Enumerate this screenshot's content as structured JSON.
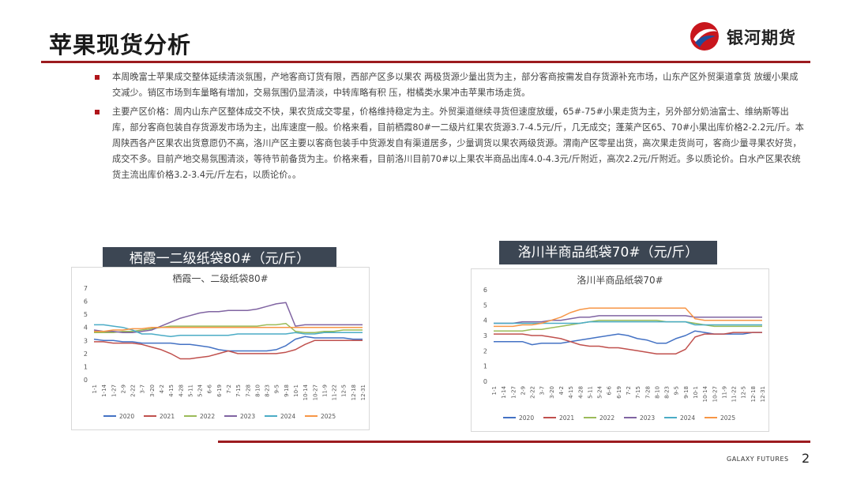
{
  "page": {
    "title": "苹果现货分析",
    "logo_text": "银河期货",
    "footer_brand": "GALAXY FUTURES",
    "page_number": "2",
    "colors": {
      "accent": "#9c1b1f",
      "label_bg": "#3c4653",
      "logo_red": "#c8161d",
      "logo_blue": "#1d4e9e"
    }
  },
  "bullets": [
    "本周晚富士苹果成交整体延续清淡氛围，产地客商订货有限，西部产区多以果农 两极货源少量出货为主，部分客商按需发自存货源补充市场，山东产区外贸渠道拿货 放缓小果成交减少。销区市场到车量略有增加，交易氛围仍显清淡，中转库略有积 压，柑橘类水果冲击苹果市场走货。",
    "主要产区价格：周内山东产区整体成交不快，果农货成交零星，价格维持稳定为主。外贸渠道继续寻货但速度放缓，65#-75#小果走货为主，另外部分奶油富士、维纳斯等出库，部分客商包装自存货源发市场为主，出库速度一般。价格来看，目前栖霞80#一二级片红果农货源3.7-4.5元/斤，几无成交；蓬莱产区65、70#小果出库价格2-2.2元/斤。本周陕西各产区果农出货意愿仍不高，洛川产区主要以客商包装手中货源发自有渠道居多，少量调货以果农两级货源。渭南产区零星出货，高次果走货尚可，客商少量寻果农好货，成交不多。目前产地交易氛围清淡，等待节前备货为主。价格来看，目前洛川目前70#以上果农半商品出库4.0-4.3元/斤附近，高次2.2元/斤附近。多以质论价。白水产区果农统货主流出库价格3.2-3.4元/斤左右，以质论价。。"
  ],
  "charts": {
    "left_label": "栖霞一二级纸袋80#（元/斤）",
    "right_label": "洛川半商品纸袋70#（元/斤）"
  },
  "chart_data": [
    {
      "type": "line",
      "title": "栖霞一、二级纸袋80#",
      "ylim": [
        0,
        7
      ],
      "yticks": [
        0,
        1,
        2,
        3,
        4,
        5,
        6,
        7
      ],
      "categories": [
        "1-1",
        "1-14",
        "1-27",
        "2-9",
        "2-22",
        "3-7",
        "3-20",
        "4-2",
        "4-15",
        "4-28",
        "5-11",
        "5-24",
        "6-6",
        "6-19",
        "7-2",
        "7-15",
        "7-28",
        "8-10",
        "8-23",
        "9-5",
        "9-18",
        "10-1",
        "10-14",
        "10-27",
        "11-9",
        "11-22",
        "12-5",
        "12-18",
        "12-31"
      ],
      "grid": false,
      "legend": "bottom",
      "series": [
        {
          "name": "2020",
          "color": "#4472c4",
          "values": [
            3.1,
            3.0,
            3.0,
            2.9,
            2.9,
            2.8,
            2.8,
            2.8,
            2.8,
            2.7,
            2.7,
            2.6,
            2.5,
            2.3,
            2.2,
            2.2,
            2.2,
            2.2,
            2.2,
            2.3,
            2.6,
            3.1,
            3.3,
            3.2,
            3.2,
            3.2,
            3.2,
            3.1,
            3.1
          ]
        },
        {
          "name": "2021",
          "color": "#c0504d",
          "values": [
            2.9,
            2.9,
            2.8,
            2.8,
            2.8,
            2.7,
            2.5,
            2.3,
            2.0,
            1.6,
            1.6,
            1.7,
            1.8,
            2.0,
            2.2,
            2.0,
            2.0,
            2.0,
            2.0,
            2.0,
            2.1,
            2.3,
            2.7,
            3.0,
            3.0,
            3.0,
            3.0,
            3.0,
            3.0
          ]
        },
        {
          "name": "2022",
          "color": "#9bbb59",
          "values": [
            3.6,
            3.6,
            3.6,
            3.7,
            3.7,
            3.8,
            3.9,
            4.0,
            4.1,
            4.1,
            4.1,
            4.1,
            4.1,
            4.1,
            4.1,
            4.1,
            4.1,
            4.1,
            4.2,
            4.2,
            4.3,
            3.7,
            3.6,
            3.6,
            3.7,
            3.7,
            3.8,
            3.8,
            3.8
          ]
        },
        {
          "name": "2023",
          "color": "#8064a2",
          "values": [
            3.8,
            3.7,
            3.7,
            3.6,
            3.6,
            3.7,
            3.8,
            4.1,
            4.4,
            4.7,
            4.9,
            5.1,
            5.2,
            5.2,
            5.3,
            5.3,
            5.3,
            5.4,
            5.6,
            5.8,
            5.9,
            4.1,
            4.2,
            4.2,
            4.2,
            4.2,
            4.2,
            4.2,
            4.2
          ]
        },
        {
          "name": "2024",
          "color": "#4bacc6",
          "values": [
            4.2,
            4.2,
            4.1,
            4.0,
            3.8,
            3.5,
            3.5,
            3.4,
            3.3,
            3.4,
            3.4,
            3.4,
            3.4,
            3.4,
            3.4,
            3.5,
            3.5,
            3.5,
            3.5,
            3.5,
            3.5,
            3.6,
            3.5,
            3.5,
            3.6,
            3.6,
            3.6,
            3.6,
            3.6
          ]
        },
        {
          "name": "2025",
          "color": "#f79646",
          "values": [
            3.7,
            3.7,
            3.8,
            3.8,
            3.9,
            3.9,
            4.0,
            4.0,
            4.0,
            4.0,
            4.0,
            4.0,
            4.0,
            4.0,
            4.0,
            4.0,
            4.0,
            4.0,
            4.0,
            4.0,
            4.0,
            4.0,
            4.0,
            4.0,
            4.0,
            4.0,
            4.0,
            4.0,
            4.0
          ]
        }
      ]
    },
    {
      "type": "line",
      "title": "洛川半商品纸袋70#",
      "ylim": [
        0,
        6
      ],
      "yticks": [
        0,
        1,
        2,
        3,
        4,
        5,
        6
      ],
      "categories": [
        "1-1",
        "1-14",
        "1-27",
        "2-9",
        "2-22",
        "3-7",
        "3-20",
        "4-2",
        "4-15",
        "4-28",
        "5-11",
        "5-24",
        "6-6",
        "6-19",
        "7-2",
        "7-15",
        "7-28",
        "8-10",
        "8-23",
        "9-5",
        "9-18",
        "10-1",
        "10-14",
        "10-27",
        "11-9",
        "11-22",
        "12-5",
        "12-18",
        "12-31"
      ],
      "grid": false,
      "legend": "bottom",
      "series": [
        {
          "name": "2020",
          "color": "#4472c4",
          "values": [
            2.6,
            2.6,
            2.6,
            2.6,
            2.4,
            2.5,
            2.5,
            2.5,
            2.6,
            2.7,
            2.8,
            2.9,
            3.0,
            3.1,
            3.0,
            2.8,
            2.7,
            2.5,
            2.5,
            2.8,
            3.0,
            3.3,
            3.2,
            3.1,
            3.1,
            3.1,
            3.1,
            3.2,
            3.2
          ]
        },
        {
          "name": "2021",
          "color": "#c0504d",
          "values": [
            3.1,
            3.1,
            3.1,
            3.1,
            3.0,
            3.0,
            2.9,
            2.8,
            2.6,
            2.4,
            2.3,
            2.3,
            2.2,
            2.2,
            2.1,
            2.0,
            1.9,
            1.8,
            1.8,
            1.8,
            2.1,
            2.9,
            3.1,
            3.1,
            3.1,
            3.2,
            3.2,
            3.2,
            3.2
          ]
        },
        {
          "name": "2022",
          "color": "#9bbb59",
          "values": [
            3.3,
            3.3,
            3.3,
            3.3,
            3.4,
            3.4,
            3.5,
            3.6,
            3.7,
            3.8,
            3.9,
            4.0,
            4.0,
            4.0,
            4.0,
            4.0,
            4.0,
            4.0,
            3.9,
            3.9,
            3.9,
            3.8,
            3.7,
            3.6,
            3.6,
            3.6,
            3.6,
            3.6,
            3.6
          ]
        },
        {
          "name": "2023",
          "color": "#8064a2",
          "values": [
            3.8,
            3.8,
            3.8,
            3.9,
            3.9,
            3.9,
            4.0,
            4.0,
            4.1,
            4.2,
            4.2,
            4.3,
            4.3,
            4.3,
            4.3,
            4.3,
            4.3,
            4.3,
            4.3,
            4.3,
            4.3,
            4.2,
            4.2,
            4.2,
            4.2,
            4.2,
            4.2,
            4.2,
            4.2
          ]
        },
        {
          "name": "2024",
          "color": "#4bacc6",
          "values": [
            3.8,
            3.8,
            3.8,
            3.8,
            3.8,
            3.8,
            3.8,
            3.8,
            3.8,
            3.8,
            3.9,
            3.9,
            3.9,
            3.9,
            3.9,
            3.9,
            3.9,
            3.9,
            3.9,
            3.9,
            3.9,
            3.7,
            3.7,
            3.7,
            3.7,
            3.7,
            3.7,
            3.7,
            3.7
          ]
        },
        {
          "name": "2025",
          "color": "#f79646",
          "values": [
            3.6,
            3.6,
            3.6,
            3.7,
            3.7,
            3.8,
            4.0,
            4.2,
            4.5,
            4.7,
            4.8,
            4.8,
            4.8,
            4.8,
            4.8,
            4.8,
            4.8,
            4.8,
            4.8,
            4.8,
            4.8,
            4.1,
            4.0,
            4.0,
            4.0,
            4.0,
            4.0,
            4.0,
            4.0
          ]
        }
      ]
    }
  ]
}
